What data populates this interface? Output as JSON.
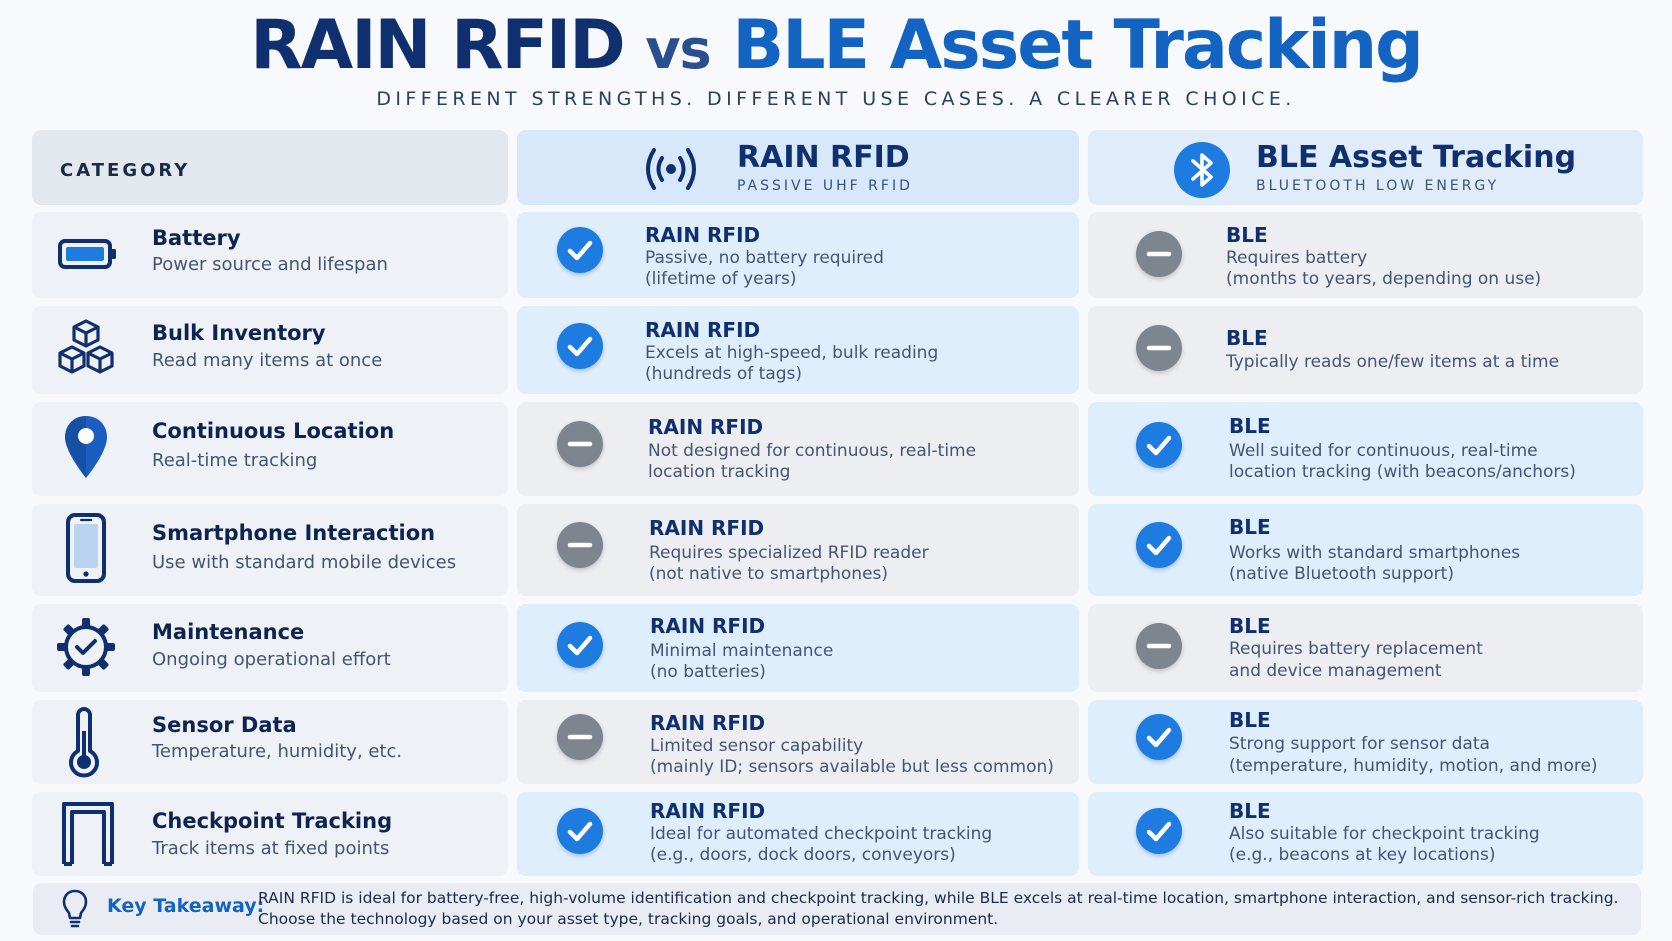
{
  "header": {
    "title_part1": "RAIN RFID",
    "title_part2": "vs",
    "title_part3": "BLE Asset Tracking",
    "subtitle": "DIFFERENT STRENGTHS. DIFFERENT USE CASES. A CLEARER CHOICE."
  },
  "columns": {
    "category": "CATEGORY",
    "rfid": {
      "title": "RAIN RFID",
      "subtitle": "PASSIVE UHF RFID",
      "icon": "rfid-signal-icon"
    },
    "ble": {
      "title": "BLE Asset Tracking",
      "subtitle": "BLUETOOTH LOW ENERGY",
      "icon": "bluetooth-icon"
    }
  },
  "rows": [
    {
      "icon": "battery-icon",
      "category": "Battery",
      "desc": "Power source and lifespan",
      "rfid": {
        "status": "check",
        "title": "RAIN RFID",
        "lines": [
          "Passive, no battery required",
          "(lifetime of years)"
        ]
      },
      "ble": {
        "status": "minus",
        "title": "BLE",
        "lines": [
          "Requires battery",
          "(months to years, depending on use)"
        ]
      }
    },
    {
      "icon": "boxes-icon",
      "category": "Bulk Inventory",
      "desc": "Read many items at once",
      "rfid": {
        "status": "check",
        "title": "RAIN RFID",
        "lines": [
          "Excels at high-speed, bulk reading",
          "(hundreds of tags)"
        ]
      },
      "ble": {
        "status": "minus",
        "title": "BLE",
        "lines": [
          "Typically reads one/few items at a time"
        ]
      }
    },
    {
      "icon": "location-pin-icon",
      "category": "Continuous Location",
      "desc": "Real-time tracking",
      "rfid": {
        "status": "minus",
        "title": "RAIN RFID",
        "lines": [
          "Not designed for continuous, real-time",
          "location tracking"
        ]
      },
      "ble": {
        "status": "check",
        "title": "BLE",
        "lines": [
          "Well suited for continuous, real-time",
          "location tracking (with beacons/anchors)"
        ]
      }
    },
    {
      "icon": "smartphone-icon",
      "category": "Smartphone Interaction",
      "desc": "Use with standard mobile devices",
      "rfid": {
        "status": "minus",
        "title": "RAIN RFID",
        "lines": [
          "Requires specialized RFID reader",
          "(not native to smartphones)"
        ]
      },
      "ble": {
        "status": "check",
        "title": "BLE",
        "lines": [
          "Works with standard smartphones",
          "(native Bluetooth support)"
        ]
      }
    },
    {
      "icon": "gear-check-icon",
      "category": "Maintenance",
      "desc": "Ongoing operational effort",
      "rfid": {
        "status": "check",
        "title": "RAIN RFID",
        "lines": [
          "Minimal maintenance",
          "(no batteries)"
        ]
      },
      "ble": {
        "status": "minus",
        "title": "BLE",
        "lines": [
          "Requires battery replacement",
          "and device management"
        ]
      }
    },
    {
      "icon": "thermometer-icon",
      "category": "Sensor Data",
      "desc": "Temperature, humidity, etc.",
      "rfid": {
        "status": "minus",
        "title": "RAIN RFID",
        "lines": [
          "Limited sensor capability",
          "(mainly ID; sensors available but less common)"
        ]
      },
      "ble": {
        "status": "check",
        "title": "BLE",
        "lines": [
          "Strong support for sensor data",
          "(temperature, humidity, motion, and more)"
        ]
      }
    },
    {
      "icon": "checkpoint-gate-icon",
      "category": "Checkpoint Tracking",
      "desc": "Track items at fixed points",
      "rfid": {
        "status": "check",
        "title": "RAIN RFID",
        "lines": [
          "Ideal for automated checkpoint tracking",
          "(e.g., doors, dock doors, conveyors)"
        ]
      },
      "ble": {
        "status": "check",
        "title": "BLE",
        "lines": [
          "Also suitable for checkpoint tracking",
          "(e.g., beacons at key locations)"
        ]
      }
    }
  ],
  "footer": {
    "label": "Key Takeaway:",
    "icon": "lightbulb-icon",
    "lines": [
      "RAIN RFID is ideal for battery-free, high-volume identification and checkpoint tracking, while BLE excels at real-time location, smartphone interaction, and sensor-rich tracking.",
      "Choose the technology based on your asset type, tracking goals, and operational environment."
    ]
  },
  "colors": {
    "navy": "#0f2f6e",
    "accent_blue": "#1263c2",
    "check": "#1e7be0",
    "minus": "#7e858f",
    "rfid_cell": "#dfeefc",
    "neutral_cell": "#eceef2"
  }
}
